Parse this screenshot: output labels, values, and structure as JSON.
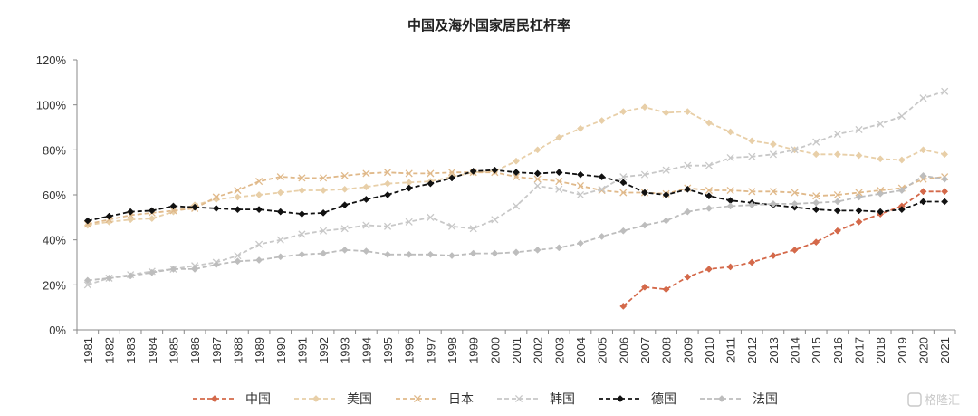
{
  "chart_data": {
    "type": "line",
    "title": "中国及海外国家居民杠杆率",
    "xlabel": "",
    "ylabel": "",
    "ylim": [
      0,
      120
    ],
    "yticks": [
      "0%",
      "20%",
      "40%",
      "60%",
      "80%",
      "100%",
      "120%"
    ],
    "x": [
      "1981",
      "1982",
      "1983",
      "1984",
      "1985",
      "1986",
      "1987",
      "1988",
      "1989",
      "1990",
      "1991",
      "1992",
      "1993",
      "1994",
      "1995",
      "1996",
      "1997",
      "1998",
      "1999",
      "2000",
      "2001",
      "2002",
      "2003",
      "2004",
      "2005",
      "2006",
      "2007",
      "2008",
      "2009",
      "2010",
      "2011",
      "2012",
      "2013",
      "2014",
      "2015",
      "2016",
      "2017",
      "2018",
      "2019",
      "2020",
      "2021"
    ],
    "legend_position": "bottom",
    "grid": false,
    "series": [
      {
        "name": "中国",
        "color": "#d4694a",
        "marker": "diamond",
        "values": [
          null,
          null,
          null,
          null,
          null,
          null,
          null,
          null,
          null,
          null,
          null,
          null,
          null,
          null,
          null,
          null,
          null,
          null,
          null,
          null,
          null,
          null,
          null,
          null,
          null,
          10.5,
          19,
          18,
          23.5,
          27,
          28,
          30,
          33,
          35.5,
          39,
          44,
          48,
          51.5,
          55,
          61.5,
          61.5
        ]
      },
      {
        "name": "美国",
        "color": "#e8cfa8",
        "marker": "diamond",
        "values": [
          46.5,
          48,
          49,
          49.5,
          52.5,
          55.5,
          58,
          59,
          60,
          61,
          62,
          62,
          62.5,
          63.5,
          65,
          65.5,
          66,
          68,
          70,
          70.5,
          75,
          80,
          85.5,
          89.5,
          93,
          97,
          99,
          96.5,
          97,
          92,
          88,
          84,
          82.5,
          80,
          78,
          78,
          77.5,
          76,
          75.5,
          80,
          78
        ]
      },
      {
        "name": "日本",
        "color": "#e0b98a",
        "marker": "x",
        "values": [
          47,
          49,
          51,
          52,
          53,
          54,
          59,
          62,
          66,
          68,
          67.5,
          67.5,
          68.5,
          69.5,
          70,
          69.5,
          69.5,
          70,
          70,
          70,
          68,
          67,
          66,
          64,
          62,
          61,
          61,
          60.5,
          63,
          62,
          62,
          61.5,
          61.5,
          61,
          59.5,
          60,
          61,
          62,
          63,
          67,
          68
        ]
      },
      {
        "name": "韩国",
        "color": "#c8c8c8",
        "marker": "x",
        "values": [
          20,
          23,
          24.5,
          26,
          27,
          28.5,
          30,
          33,
          38,
          40,
          42.5,
          44,
          45,
          46.5,
          46,
          48,
          50,
          46,
          45,
          49,
          55,
          64,
          62.5,
          60,
          62.5,
          68,
          69,
          71,
          73,
          73,
          76.5,
          77,
          78,
          80,
          83.5,
          87,
          89,
          91.5,
          95,
          103,
          106
        ]
      },
      {
        "name": "德国",
        "color": "#111111",
        "marker": "diamond",
        "values": [
          48.5,
          50.5,
          52.5,
          53,
          55,
          54.5,
          54,
          53.5,
          53.5,
          52.5,
          51.5,
          52,
          55.5,
          58,
          60,
          63,
          65,
          67.5,
          70.5,
          71,
          70,
          69.5,
          70,
          69,
          68,
          65.5,
          61,
          60,
          62.5,
          59.5,
          57.5,
          56.5,
          55.5,
          54.5,
          53.5,
          53,
          53,
          52.5,
          53.5,
          57,
          57
        ]
      },
      {
        "name": "法国",
        "color": "#bdbdbd",
        "marker": "diamond",
        "values": [
          22,
          23,
          24,
          25.5,
          27,
          27,
          29,
          30.5,
          31,
          32.5,
          33.5,
          34,
          35.5,
          35,
          33.5,
          33.5,
          33.5,
          33,
          34,
          34,
          34.5,
          35.5,
          36.5,
          38.5,
          41.5,
          44,
          46.5,
          48.5,
          52.5,
          54,
          55,
          55.5,
          56,
          56,
          56.5,
          57,
          59,
          60.5,
          62,
          68.5,
          67
        ]
      }
    ]
  },
  "watermark": {
    "text": "格隆汇"
  }
}
